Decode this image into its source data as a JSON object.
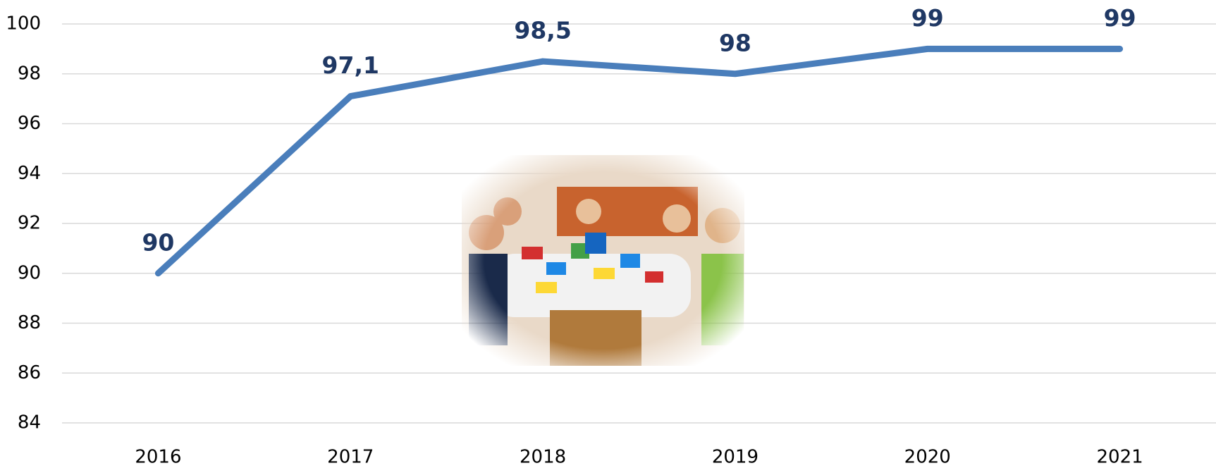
{
  "chart_data": {
    "type": "line",
    "categories": [
      "2016",
      "2017",
      "2018",
      "2019",
      "2020",
      "2021"
    ],
    "values": [
      90,
      97.1,
      98.5,
      98,
      99,
      99
    ],
    "value_labels": [
      "90",
      "97,1",
      "98,5",
      "98",
      "99",
      "99"
    ],
    "color": "#4a7ebb",
    "ylim": [
      84,
      100
    ],
    "yticks": [
      84,
      86,
      88,
      90,
      92,
      94,
      96,
      98,
      100
    ],
    "grid": true
  }
}
